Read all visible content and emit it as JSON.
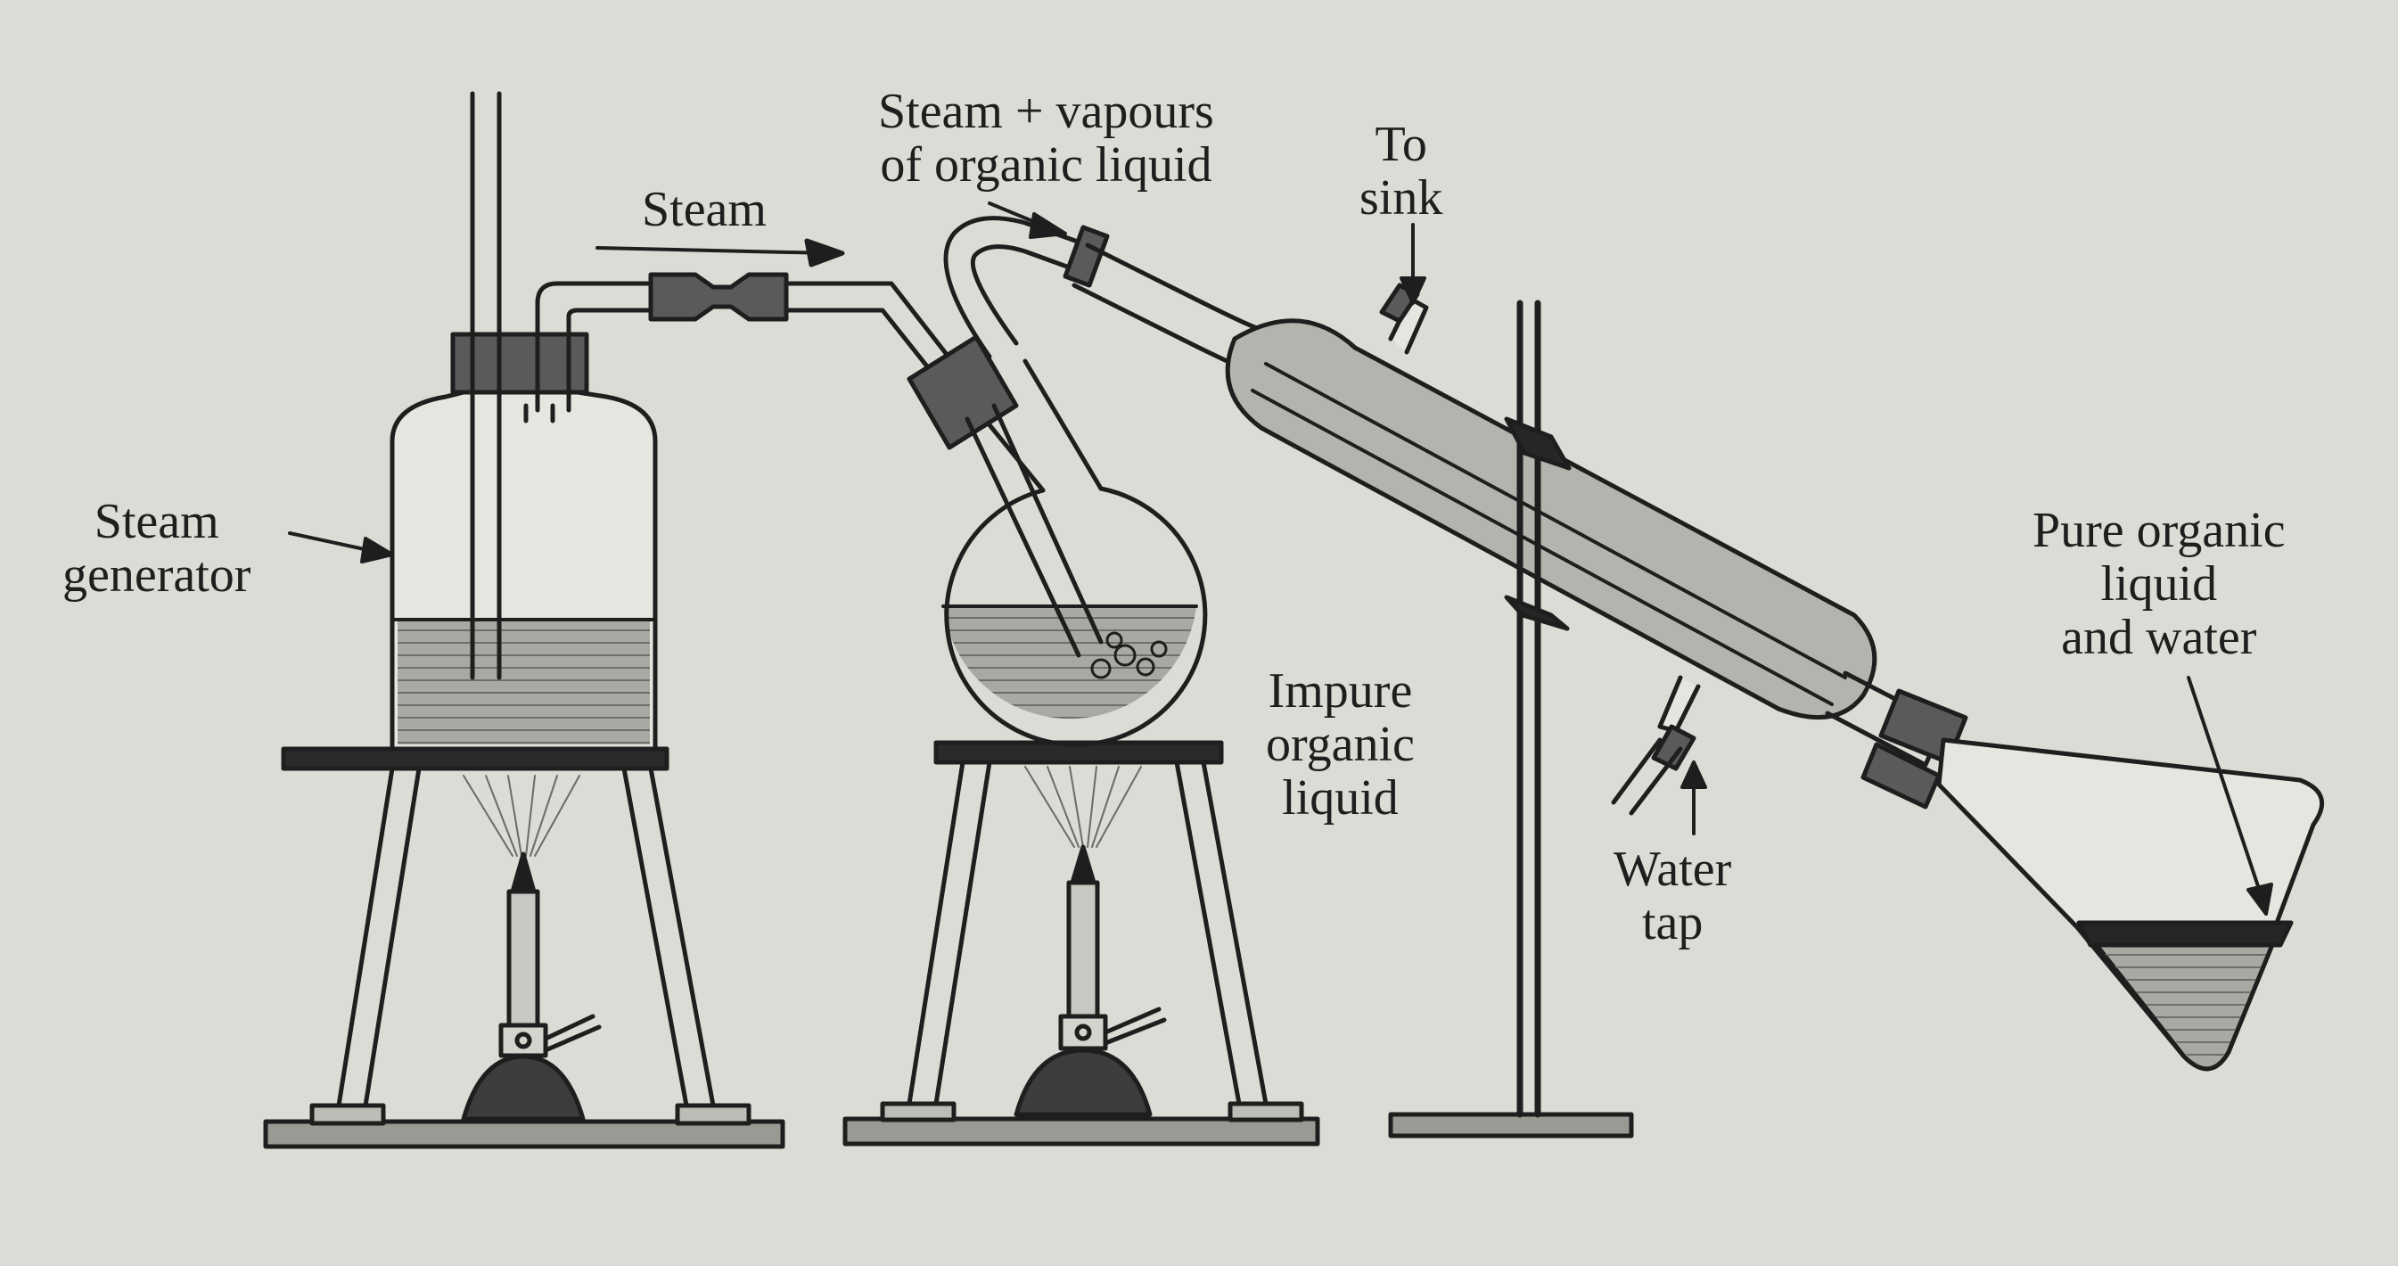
{
  "labels": {
    "steam_generator": [
      "Steam",
      "generator"
    ],
    "steam": "Steam",
    "steam_vapours": [
      "Steam + vapours",
      "of organic liquid"
    ],
    "to_sink": [
      "To",
      "sink"
    ],
    "impure_liquid": [
      "Impure",
      "organic",
      "liquid"
    ],
    "water_tap": [
      "Water",
      "tap"
    ],
    "pure_liquid": [
      "Pure organic",
      "liquid",
      "and water"
    ]
  },
  "colors": {
    "paper": "#dcdcd6",
    "ink": "#1e1e1e",
    "glass": "#e6e6e0",
    "liquid": "#a9a9a3",
    "condenser_jacket": "#b4b4ae",
    "rubber": "#555555",
    "clamp": "#262626"
  }
}
